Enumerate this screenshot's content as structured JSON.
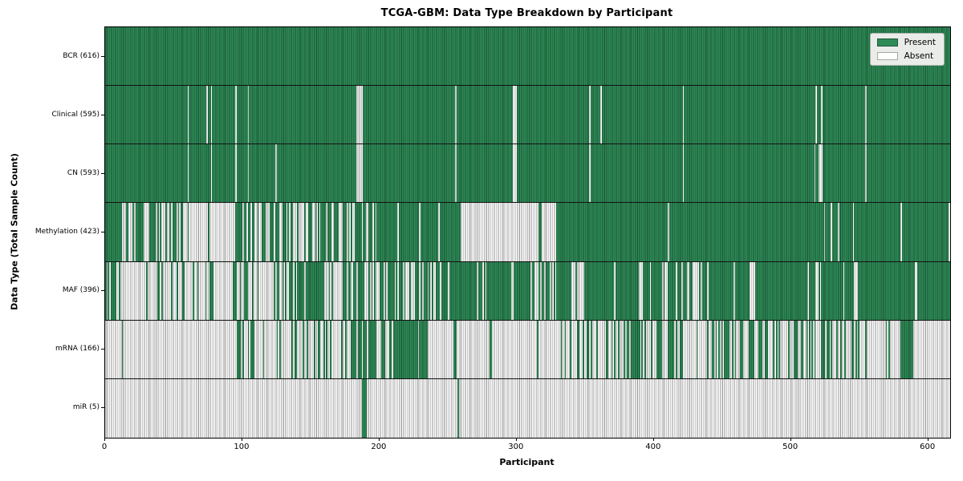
{
  "chart_data": {
    "type": "heatmap",
    "title": "TCGA-GBM: Data Type Breakdown by Participant",
    "xlabel": "Participant",
    "ylabel": "Data Type (Total Sample Count)",
    "x_ticks": [
      "0",
      "100",
      "200",
      "300",
      "400",
      "500",
      "600"
    ],
    "x_tick_values": [
      0,
      100,
      200,
      300,
      400,
      500,
      600
    ],
    "x_range": [
      0,
      616
    ],
    "n_participants": 616,
    "grid": false,
    "legend": {
      "position": "upper-right",
      "items": [
        {
          "label": "Present",
          "color": "#2e8b57"
        },
        {
          "label": "Absent",
          "color": "#ffffff"
        }
      ]
    },
    "colors": {
      "present": "#2e8b57",
      "absent": "#ffffff",
      "cell_edge": "rgba(0,0,0,0.42)",
      "legend_bg": "#e9ece9",
      "legend_border": "#adb3ad",
      "row_separator": "#151515"
    },
    "rows": [
      {
        "name": "BCR",
        "label": "BCR (616)",
        "present_count": 616,
        "segments": [
          [
            0,
            616,
            1
          ]
        ]
      },
      {
        "name": "Clinical",
        "label": "Clinical (595)",
        "present_count": 595,
        "segments": [
          [
            0,
            60,
            1
          ],
          [
            61,
            74,
            1
          ],
          [
            75,
            77,
            1
          ],
          [
            78,
            95,
            1
          ],
          [
            96,
            104,
            1
          ],
          [
            105,
            183,
            1
          ],
          [
            188,
            255,
            1
          ],
          [
            256,
            297,
            1
          ],
          [
            300,
            353,
            1
          ],
          [
            354,
            361,
            1
          ],
          [
            362,
            421,
            1
          ],
          [
            422,
            518,
            1
          ],
          [
            519,
            522,
            1
          ],
          [
            523,
            554,
            1
          ],
          [
            555,
            616,
            1
          ]
        ]
      },
      {
        "name": "CN",
        "label": "CN (593)",
        "present_count": 593,
        "segments": [
          [
            0,
            60,
            1
          ],
          [
            61,
            77,
            1
          ],
          [
            78,
            95,
            1
          ],
          [
            96,
            104,
            1
          ],
          [
            105,
            124,
            1
          ],
          [
            125,
            183,
            1
          ],
          [
            188,
            255,
            1
          ],
          [
            256,
            297,
            1
          ],
          [
            300,
            353,
            1
          ],
          [
            354,
            421,
            1
          ],
          [
            422,
            517,
            1
          ],
          [
            518,
            520,
            1
          ],
          [
            523,
            554,
            1
          ],
          [
            555,
            616,
            1
          ]
        ]
      },
      {
        "name": "Methylation",
        "label": "Methylation (423)",
        "present_count": 423,
        "segments": [
          [
            0,
            8,
            1
          ],
          [
            8,
            57,
            0.55
          ],
          [
            57,
            95,
            0.08
          ],
          [
            95,
            130,
            0.6
          ],
          [
            130,
            175,
            0.45
          ],
          [
            175,
            200,
            0.5
          ],
          [
            200,
            259,
            0.95
          ],
          [
            316,
            318,
            1
          ],
          [
            329,
            410,
            1
          ],
          [
            411,
            616,
            0.96
          ]
        ]
      },
      {
        "name": "MAF",
        "label": "MAF (396)",
        "present_count": 396,
        "segments": [
          [
            0,
            10,
            0.5
          ],
          [
            10,
            92,
            0.12
          ],
          [
            92,
            104,
            0.7
          ],
          [
            104,
            125,
            0.3
          ],
          [
            125,
            148,
            0.5
          ],
          [
            148,
            160,
            0.85
          ],
          [
            160,
            172,
            0.25
          ],
          [
            172,
            188,
            0.8
          ],
          [
            188,
            202,
            0.3
          ],
          [
            202,
            230,
            0.6
          ],
          [
            230,
            242,
            0.85
          ],
          [
            242,
            310,
            0.9
          ],
          [
            310,
            330,
            0.55
          ],
          [
            330,
            340,
            0.95
          ],
          [
            340,
            349,
            0.2
          ],
          [
            349,
            371,
            1
          ],
          [
            372,
            389,
            1
          ],
          [
            392,
            420,
            0.85
          ],
          [
            420,
            434,
            0.5
          ],
          [
            434,
            471,
            0.95
          ],
          [
            471,
            475,
            0.35
          ],
          [
            475,
            512,
            1
          ],
          [
            513,
            521,
            0.9
          ],
          [
            522,
            538,
            1
          ],
          [
            539,
            546,
            1
          ],
          [
            546,
            550,
            0.3
          ],
          [
            550,
            590,
            1
          ],
          [
            592,
            616,
            1
          ]
        ]
      },
      {
        "name": "mRNA",
        "label": "mRNA (166)",
        "present_count": 166,
        "segments": [
          [
            0,
            22,
            0.05
          ],
          [
            22,
            29,
            0.3
          ],
          [
            90,
            123,
            0.35
          ],
          [
            123,
            170,
            0.4
          ],
          [
            170,
            185,
            0.55
          ],
          [
            185,
            196,
            0.9
          ],
          [
            196,
            209,
            0.45
          ],
          [
            209,
            236,
            0.85
          ],
          [
            254,
            256,
            1
          ],
          [
            280,
            282,
            1
          ],
          [
            310,
            329,
            0.05
          ],
          [
            329,
            360,
            0.5
          ],
          [
            360,
            385,
            0.3
          ],
          [
            385,
            420,
            0.45
          ],
          [
            420,
            445,
            0.3
          ],
          [
            445,
            465,
            0.55
          ],
          [
            465,
            480,
            0.35
          ],
          [
            480,
            495,
            0.55
          ],
          [
            495,
            520,
            0.35
          ],
          [
            520,
            540,
            0.3
          ],
          [
            540,
            558,
            0.25
          ],
          [
            565,
            572,
            0.4
          ],
          [
            580,
            589,
            0.9
          ]
        ]
      },
      {
        "name": "miR",
        "label": "miR (5)",
        "present_count": 5,
        "segments": [
          [
            187,
            191,
            1
          ],
          [
            257,
            258,
            1
          ]
        ]
      }
    ]
  }
}
